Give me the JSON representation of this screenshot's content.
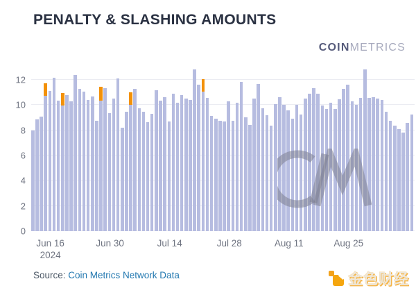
{
  "title": "PENALTY & SLASHING AMOUNTS",
  "brand_logo": {
    "bold": "COIN",
    "light": "METRICS"
  },
  "watermark": "CM",
  "source": {
    "prefix": "Source: ",
    "link_text": "Coin Metrics Network Data"
  },
  "footer_logo": {
    "text": "金色财经"
  },
  "colors": {
    "title": "#2a3142",
    "penalty_bar": "#b6bce0",
    "slashing_bar": "#f39108",
    "gridline": "#ebecf2",
    "axis_text": "#6e7380",
    "source_link": "#2278b0",
    "watermark_gray": "#7d8091",
    "footer_orange": "#f2a21c"
  },
  "chart_data": {
    "type": "bar",
    "stacked": true,
    "title": "PENALTY & SLASHING AMOUNTS",
    "xlabel": "",
    "ylabel": "",
    "ylim": [
      0,
      13
    ],
    "yticks": [
      0,
      2,
      4,
      6,
      8,
      10,
      12
    ],
    "grid": true,
    "legend": "none",
    "xticks": [
      {
        "label": "Jun 16",
        "index": 4,
        "sublabel": "2024"
      },
      {
        "label": "Jun 30",
        "index": 18
      },
      {
        "label": "Jul 14",
        "index": 32
      },
      {
        "label": "Jul 28",
        "index": 46
      },
      {
        "label": "Aug 11",
        "index": 60
      },
      {
        "label": "Aug 25",
        "index": 74
      }
    ],
    "series": [
      {
        "name": "penalty",
        "color": "#b6bce0",
        "values": [
          8.0,
          8.85,
          9.1,
          10.75,
          11.15,
          12.15,
          10.35,
          9.95,
          10.8,
          10.3,
          12.4,
          11.3,
          11.1,
          10.4,
          10.7,
          8.75,
          10.35,
          11.35,
          9.35,
          10.5,
          12.1,
          8.2,
          9.45,
          10.0,
          11.3,
          9.75,
          9.5,
          8.65,
          9.3,
          11.2,
          10.35,
          10.65,
          8.7,
          10.9,
          10.2,
          10.8,
          10.5,
          10.4,
          12.85,
          11.65,
          11.05,
          10.6,
          9.15,
          8.9,
          8.75,
          8.7,
          10.3,
          8.75,
          10.2,
          11.85,
          9.05,
          8.45,
          10.5,
          11.7,
          9.75,
          9.2,
          8.4,
          10.1,
          10.65,
          10.0,
          9.6,
          8.95,
          10.0,
          9.25,
          10.5,
          10.9,
          11.35,
          10.9,
          9.95,
          9.7,
          10.2,
          9.7,
          10.45,
          11.3,
          11.65,
          10.3,
          10.05,
          10.55,
          12.85,
          10.55,
          10.65,
          10.5,
          10.4,
          9.45,
          8.75,
          8.35,
          8.1,
          7.8,
          8.6,
          9.25
        ]
      },
      {
        "name": "slashing",
        "color": "#f39108",
        "values": [
          0,
          0,
          0,
          1.0,
          0,
          0,
          0,
          1.0,
          0,
          0,
          0,
          0,
          0,
          0,
          0,
          0,
          1.1,
          0,
          0,
          0,
          0,
          0,
          0,
          1.0,
          0,
          0,
          0,
          0,
          0,
          0,
          0,
          0,
          0,
          0,
          0,
          0,
          0,
          0,
          0,
          0,
          1.0,
          0,
          0,
          0,
          0,
          0,
          0,
          0,
          0,
          0,
          0,
          0,
          0,
          0,
          0,
          0,
          0,
          0,
          0,
          0,
          0,
          0,
          0,
          0,
          0,
          0,
          0,
          0,
          0,
          0,
          0,
          0,
          0,
          0,
          0,
          0,
          0,
          0,
          0,
          0,
          0,
          0,
          0,
          0,
          0,
          0,
          0,
          0,
          0,
          0
        ]
      }
    ]
  }
}
